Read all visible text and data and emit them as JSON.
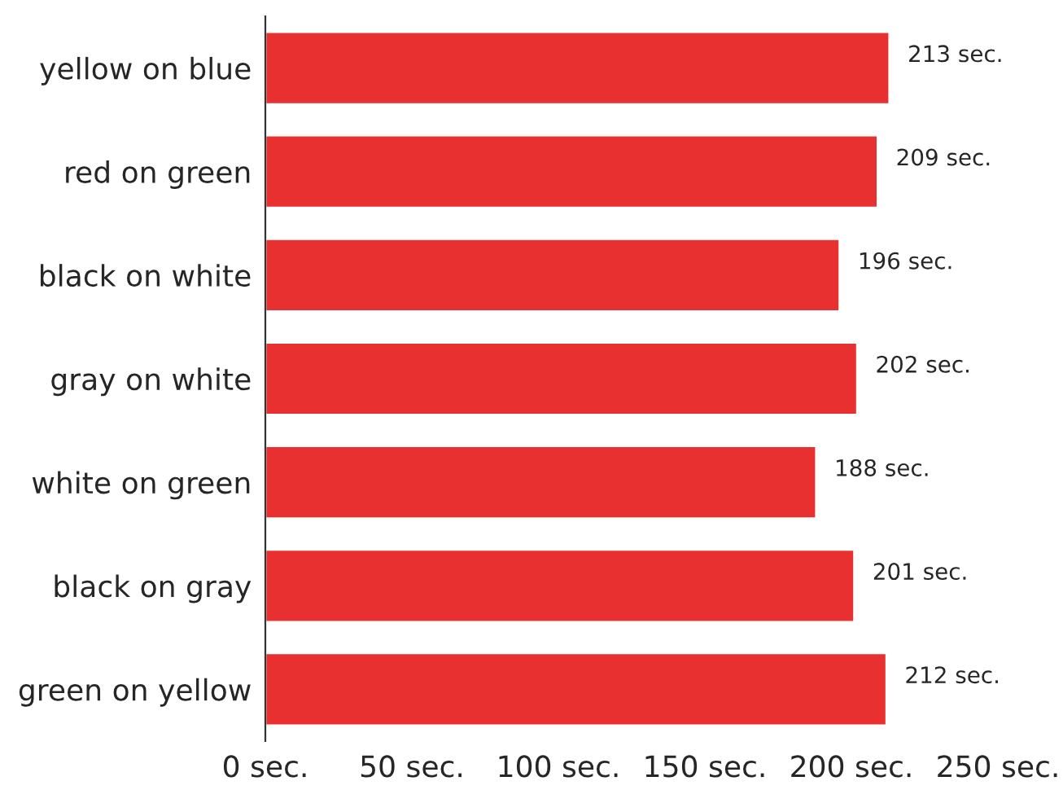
{
  "chart_data": {
    "type": "bar",
    "orientation": "horizontal",
    "categories": [
      "yellow on blue",
      "red on green",
      "black on white",
      "gray on white",
      "white on green",
      "black on gray",
      "green on yellow"
    ],
    "values": [
      213,
      209,
      196,
      202,
      188,
      201,
      212
    ],
    "value_labels": [
      "213 sec.",
      "209 sec.",
      "196 sec.",
      "202 sec.",
      "188 sec.",
      "201 sec.",
      "212 sec."
    ],
    "color": "#e83030",
    "xlim": [
      0,
      250
    ],
    "xticks": [
      {
        "value": 0,
        "label": "0 sec."
      },
      {
        "value": 50,
        "label": "50 sec."
      },
      {
        "value": 100,
        "label": "100 sec."
      },
      {
        "value": 150,
        "label": "150 sec."
      },
      {
        "value": 200,
        "label": "200 sec."
      },
      {
        "value": 250,
        "label": "250 sec."
      }
    ],
    "grid": false,
    "legend": false
  }
}
